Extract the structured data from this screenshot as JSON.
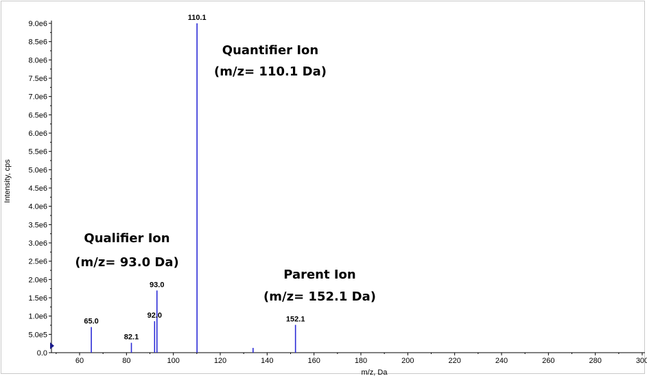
{
  "chart_data": {
    "type": "bar",
    "title": "",
    "xlabel": "m/z, Da",
    "ylabel": "Intensity, cps",
    "xlim": [
      48,
      300
    ],
    "ylim": [
      0,
      9000000
    ],
    "x_ticks": [
      60,
      80,
      100,
      120,
      140,
      160,
      180,
      200,
      220,
      240,
      260,
      280,
      300
    ],
    "x_tick_labels": [
      "60",
      "80",
      "100",
      "120",
      "140",
      "160",
      "180",
      "200",
      "220",
      "240",
      "260",
      "280",
      "300"
    ],
    "y_ticks": [
      0,
      500000,
      1000000,
      1500000,
      2000000,
      2500000,
      3000000,
      3500000,
      4000000,
      4500000,
      5000000,
      5500000,
      6000000,
      6500000,
      7000000,
      7500000,
      8000000,
      8500000,
      9000000
    ],
    "y_tick_labels": [
      "0.0",
      "5.0e5",
      "1.0e6",
      "1.5e6",
      "2.0e6",
      "2.5e6",
      "3.0e6",
      "3.5e6",
      "4.0e6",
      "4.5e6",
      "5.0e6",
      "5.5e6",
      "6.0e6",
      "6.5e6",
      "7.0e6",
      "7.5e6",
      "8.0e6",
      "8.5e6",
      "9.0e6"
    ],
    "grid": false,
    "series_color": "#2b2bd6",
    "peaks": [
      {
        "mz": 65.0,
        "intensity": 700000,
        "label": "65.0"
      },
      {
        "mz": 82.1,
        "intensity": 270000,
        "label": "82.1"
      },
      {
        "mz": 92.0,
        "intensity": 860000,
        "label": "92.0"
      },
      {
        "mz": 93.0,
        "intensity": 1700000,
        "label": "93.0"
      },
      {
        "mz": 110.1,
        "intensity": 9000000,
        "label": "110.1"
      },
      {
        "mz": 134.0,
        "intensity": 130000,
        "label": ""
      },
      {
        "mz": 152.1,
        "intensity": 760000,
        "label": "152.1"
      }
    ],
    "annotations": [
      {
        "line1": "Quantifier Ion",
        "line2": "(m/z= 110.1 Da)"
      },
      {
        "line1": "Qualifier Ion",
        "line2": "(m/z= 93.0 Da)"
      },
      {
        "line1": "Parent Ion",
        "line2": "(m/z= 152.1 Da)"
      }
    ]
  }
}
